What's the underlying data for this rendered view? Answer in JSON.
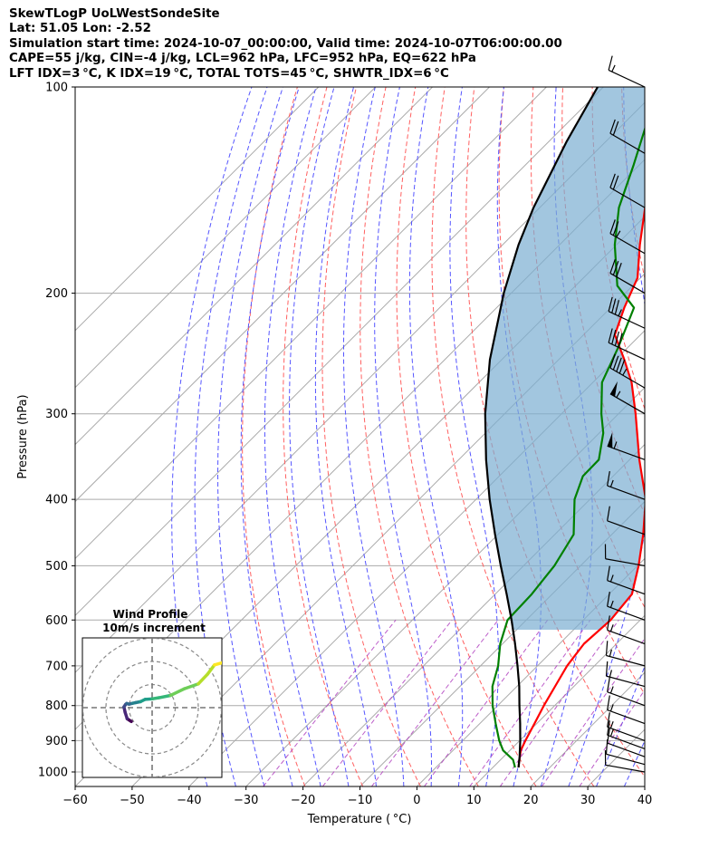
{
  "header": {
    "line1": "SkewTLogP UoLWestSondeSite",
    "line2": "Lat: 51.05   Lon: -2.52",
    "line3": "Simulation start time: 2024-10-07_00:00:00, Valid time: 2024-10-07T06:00:00.00",
    "line4": "CAPE=55 j/kg, CIN=-4 j/kg, LCL=962 hPa, LFC=952 hPa, EQ=622 hPa",
    "line5": "LFT IDX=3 °C, K IDX=19 °C, TOTAL TOTS=45 °C, SHWTR_IDX=6 °C"
  },
  "chart_data": {
    "type": "line",
    "xlabel": "Temperature ( °C)",
    "ylabel": "Pressure (hPa)",
    "x_ticks": [
      -60,
      -50,
      -40,
      -30,
      -20,
      -10,
      0,
      10,
      20,
      30,
      40
    ],
    "x_tick_labels": [
      "−60",
      "−50",
      "−40",
      "−30",
      "−20",
      "−10",
      "0",
      "10",
      "20",
      "30",
      "40"
    ],
    "y_ticks": [
      100,
      200,
      300,
      400,
      500,
      600,
      700,
      800,
      900,
      1000
    ],
    "xlim": [
      -60,
      40
    ],
    "ylim": [
      1050,
      100
    ],
    "y_scale": "log",
    "skew": "45 degrees",
    "grid": true,
    "colors": {
      "temperature": "#ff0000",
      "dewpoint": "#008000",
      "parcel": "#000000",
      "cape_fill": "#7aaed2",
      "dry_adiabat": "#ff6060",
      "moist_adiabat": "#5555ff",
      "mixing_ratio": "#b040c0",
      "isotherm": "#aaaaaa",
      "wind_barb": "#000000"
    },
    "series": [
      {
        "role": "temperature",
        "pressure": [
          985,
          960,
          930,
          900,
          850,
          800,
          750,
          700,
          650,
          600,
          550,
          500,
          450,
          400,
          350,
          300,
          270,
          250,
          230,
          210,
          190,
          170,
          150,
          130,
          115,
          100
        ],
        "values": [
          14.5,
          13.3,
          11.9,
          11.0,
          9.6,
          8.1,
          6.7,
          5.2,
          4.3,
          4.8,
          4.0,
          0.2,
          -4.5,
          -10.2,
          -18.3,
          -27.0,
          -33.2,
          -38.5,
          -44.5,
          -47.6,
          -50.5,
          -55.9,
          -61.5,
          -66.0,
          -68.2,
          -72.5
        ]
      },
      {
        "role": "dewpoint",
        "pressure": [
          985,
          960,
          930,
          900,
          850,
          800,
          750,
          700,
          650,
          600,
          550,
          500,
          450,
          400,
          370,
          350,
          320,
          300,
          270,
          240,
          210,
          195,
          170,
          150,
          130,
          100
        ],
        "values": [
          13.9,
          12.2,
          8.8,
          6.4,
          2.8,
          -0.9,
          -4.3,
          -6.9,
          -10.4,
          -13.3,
          -13.6,
          -14.6,
          -16.7,
          -22.7,
          -25.3,
          -25.4,
          -29.3,
          -33.0,
          -38.4,
          -41.7,
          -45.9,
          -52.7,
          -60.3,
          -66.1,
          -71.0,
          -80.4
        ]
      },
      {
        "role": "parcel",
        "pressure": [
          985,
          962,
          950,
          900,
          850,
          800,
          750,
          700,
          650,
          600,
          550,
          500,
          450,
          400,
          350,
          300,
          250,
          200,
          170,
          150,
          120,
          100
        ],
        "values": [
          14.5,
          13.4,
          12.8,
          10.1,
          7.1,
          3.8,
          0.4,
          -3.5,
          -7.8,
          -12.6,
          -18.0,
          -24.0,
          -30.5,
          -37.6,
          -45.2,
          -53.4,
          -62.1,
          -71.3,
          -77.2,
          -81.1,
          -86.9,
          -91.0
        ]
      }
    ],
    "wind_barbs": {
      "pressure": [
        1000,
        975,
        950,
        925,
        900,
        850,
        800,
        750,
        700,
        650,
        600,
        550,
        500,
        450,
        400,
        350,
        300,
        275,
        250,
        225,
        200,
        175,
        150,
        125,
        100
      ],
      "speed_kt": [
        10,
        10,
        10,
        15,
        15,
        15,
        15,
        15,
        15,
        15,
        15,
        15,
        10,
        10,
        15,
        55,
        55,
        45,
        40,
        35,
        30,
        25,
        20,
        20,
        15
      ],
      "direction_deg": [
        280,
        285,
        290,
        290,
        290,
        290,
        290,
        285,
        285,
        290,
        290,
        290,
        280,
        290,
        290,
        290,
        300,
        300,
        295,
        295,
        300,
        300,
        300,
        300,
        295
      ]
    },
    "inset": {
      "title": "Wind Profile",
      "subtitle": "10m/s increment",
      "type": "hodograph",
      "rings_ms": [
        10,
        20,
        30
      ],
      "u_ms": [
        -9.0,
        -10.8,
        -11.7,
        -12.2,
        -11.5,
        -11.0,
        -10.0,
        -8.5,
        -7.0,
        -5.0,
        -3.0,
        0.0,
        3.0,
        8.0,
        14.0,
        20.0,
        24.0,
        27.0,
        31.0
      ],
      "v_ms": [
        -6.0,
        -4.8,
        -2.0,
        0.3,
        1.4,
        1.8,
        1.5,
        1.9,
        2.2,
        2.6,
        3.6,
        3.8,
        4.3,
        5.3,
        8.2,
        10.3,
        14.5,
        18.5,
        19.6
      ],
      "colormap": "viridis"
    }
  }
}
